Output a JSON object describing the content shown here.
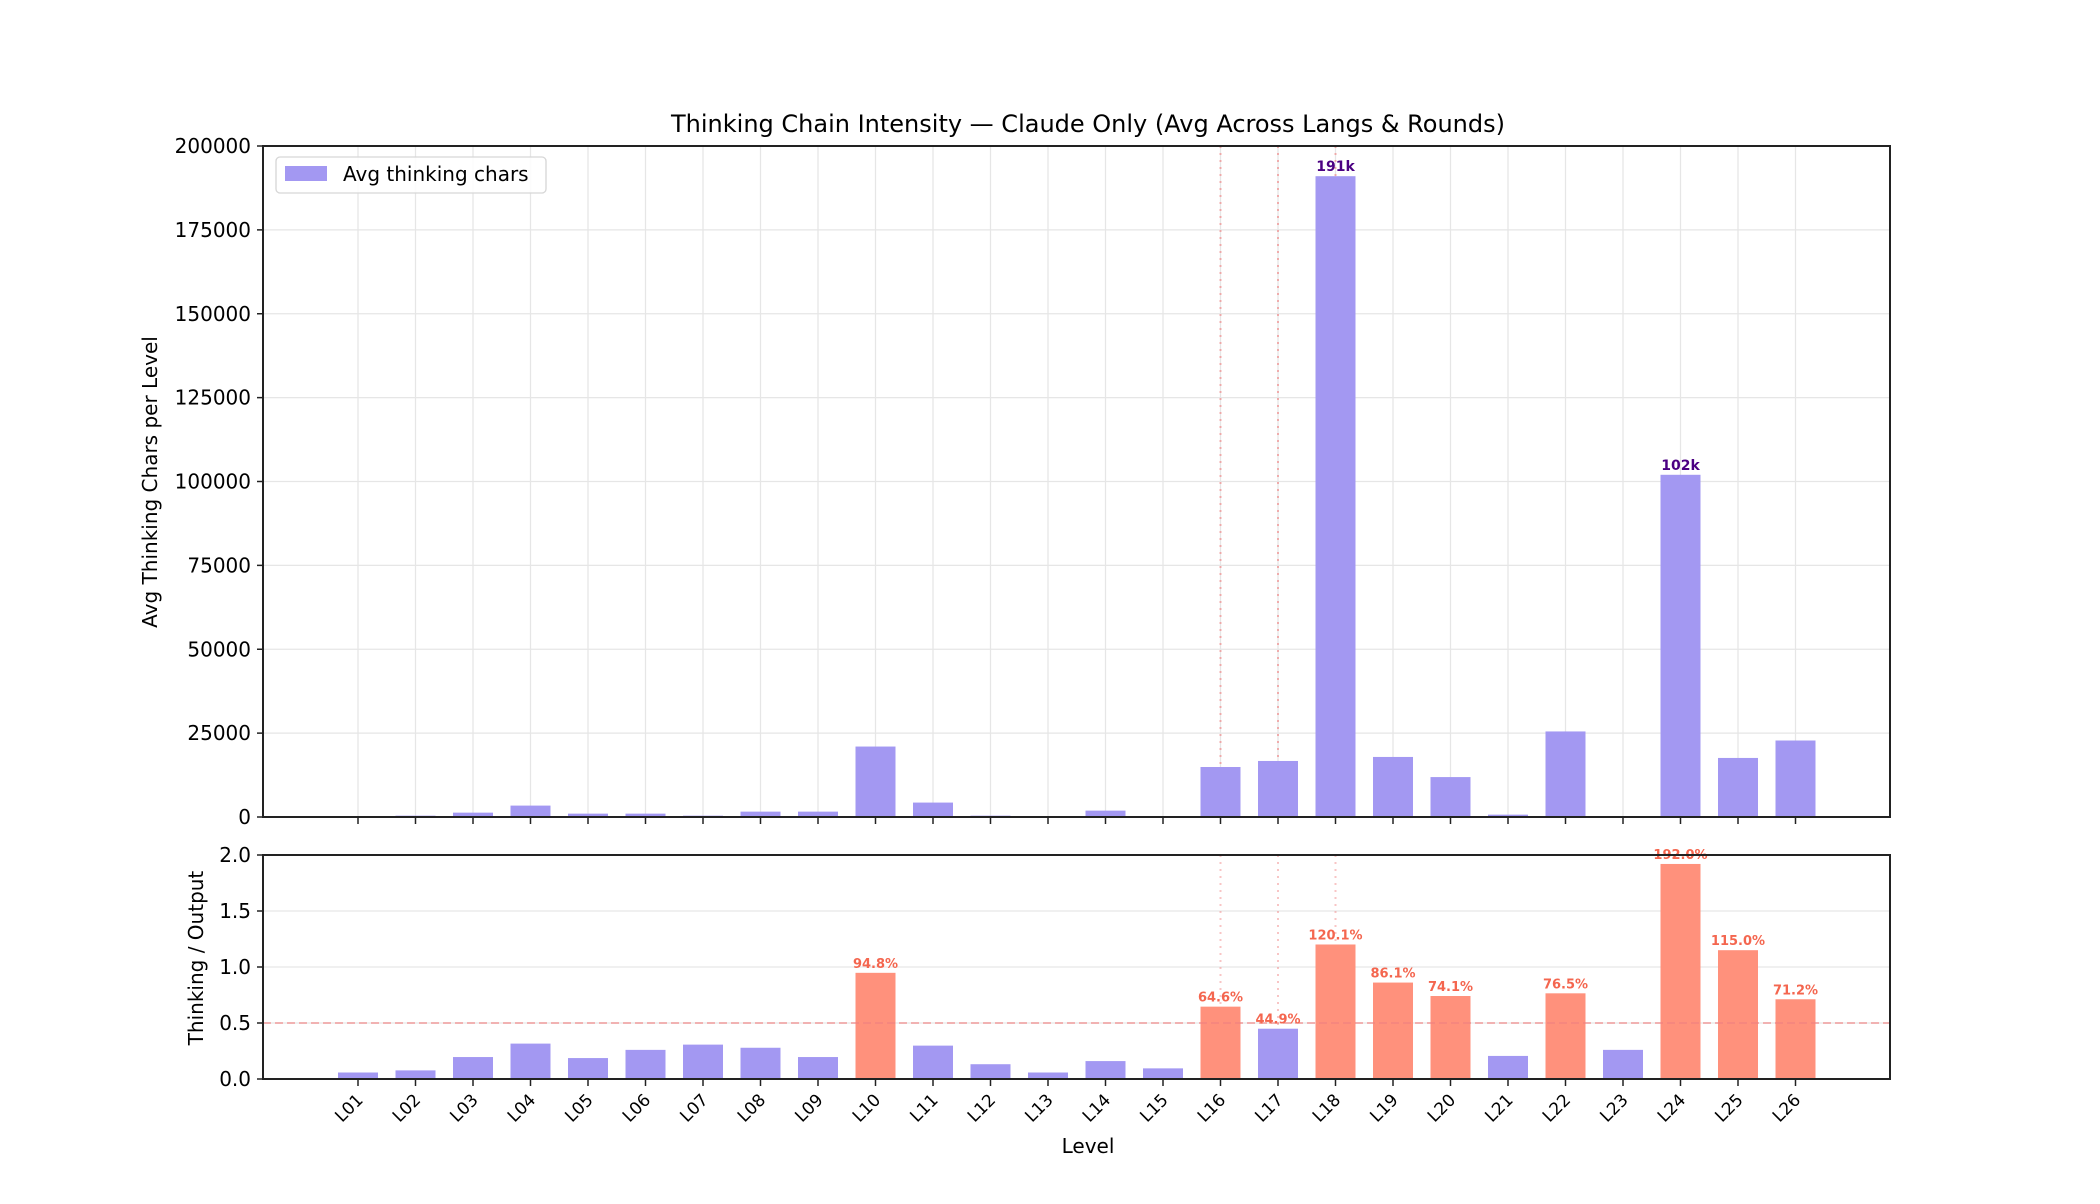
{
  "figure": {
    "title": "Thinking Chain Intensity — Claude Only (Avg Across Langs & Rounds)",
    "colors": {
      "normal_bar": "#a398f2",
      "highlight_bar": "#ff917c",
      "peak_label": "#4b0082",
      "ratio_label": "#f4664f",
      "threshold_line": "#f08080",
      "marker_line": "#f08080",
      "grid": "#e6e6e6",
      "axis": "#222222"
    }
  },
  "chart_data": [
    {
      "type": "bar",
      "title": "Thinking Chain Intensity — Claude Only (Avg Across Langs & Rounds)",
      "xlabel": "",
      "ylabel": "Avg Thinking Chars per Level",
      "ylim": [
        0,
        200000
      ],
      "yticks": [
        0,
        25000,
        50000,
        75000,
        100000,
        125000,
        150000,
        175000,
        200000
      ],
      "grid": true,
      "legend": {
        "position": "upper left",
        "entries": [
          "Avg thinking chars"
        ]
      },
      "categories": [
        "L01",
        "L02",
        "L03",
        "L04",
        "L05",
        "L06",
        "L07",
        "L08",
        "L09",
        "L10",
        "L11",
        "L12",
        "L13",
        "L14",
        "L15",
        "L16",
        "L17",
        "L18",
        "L19",
        "L20",
        "L21",
        "L22",
        "L23",
        "L24",
        "L25",
        "L26"
      ],
      "series": [
        {
          "name": "Avg thinking chars",
          "values": [
            100,
            400,
            1300,
            3400,
            1000,
            1000,
            400,
            1600,
            1600,
            21000,
            4300,
            400,
            100,
            1900,
            50,
            14900,
            16700,
            191000,
            17900,
            11900,
            700,
            25500,
            100,
            102000,
            17600,
            22800
          ]
        }
      ],
      "annotations": [
        {
          "category": "L18",
          "text": "191k"
        },
        {
          "category": "L24",
          "text": "102k"
        }
      ],
      "vertical_markers": [
        "L16",
        "L17",
        "L18"
      ]
    },
    {
      "type": "bar",
      "title": "",
      "xlabel": "Level",
      "ylabel": "Thinking / Output",
      "ylim": [
        0,
        2.0
      ],
      "yticks": [
        0.0,
        0.5,
        1.0,
        1.5,
        2.0
      ],
      "grid": true,
      "threshold": 0.5,
      "categories": [
        "L01",
        "L02",
        "L03",
        "L04",
        "L05",
        "L06",
        "L07",
        "L08",
        "L09",
        "L10",
        "L11",
        "L12",
        "L13",
        "L14",
        "L15",
        "L16",
        "L17",
        "L18",
        "L19",
        "L20",
        "L21",
        "L22",
        "L23",
        "L24",
        "L25",
        "L26"
      ],
      "series": [
        {
          "name": "Thinking / Output",
          "values": [
            0.058,
            0.077,
            0.196,
            0.316,
            0.187,
            0.26,
            0.307,
            0.279,
            0.196,
            0.948,
            0.298,
            0.132,
            0.058,
            0.16,
            0.095,
            0.646,
            0.449,
            1.201,
            0.861,
            0.741,
            0.206,
            0.765,
            0.26,
            1.92,
            1.15,
            0.712
          ]
        }
      ],
      "highlighted": [
        "L10",
        "L16",
        "L18",
        "L19",
        "L20",
        "L22",
        "L24",
        "L25",
        "L26"
      ],
      "annotations": [
        {
          "category": "L10",
          "text": "94.8%"
        },
        {
          "category": "L16",
          "text": "64.6%"
        },
        {
          "category": "L17",
          "text": "44.9%"
        },
        {
          "category": "L18",
          "text": "120.1%"
        },
        {
          "category": "L19",
          "text": "86.1%"
        },
        {
          "category": "L20",
          "text": "74.1%"
        },
        {
          "category": "L22",
          "text": "76.5%"
        },
        {
          "category": "L24",
          "text": "192.0%"
        },
        {
          "category": "L25",
          "text": "115.0%"
        },
        {
          "category": "L26",
          "text": "71.2%"
        }
      ],
      "vertical_markers": [
        "L16",
        "L17",
        "L18"
      ]
    }
  ]
}
